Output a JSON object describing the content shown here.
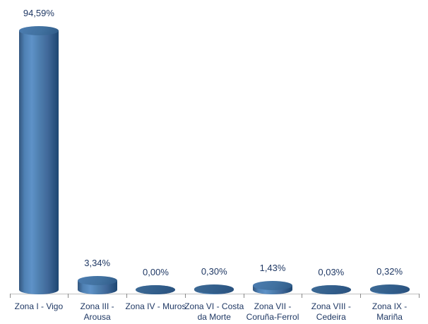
{
  "chart_data": {
    "type": "bar",
    "subtype": "3d-cylinder",
    "title": "",
    "xlabel": "",
    "ylabel": "",
    "ylim": [
      0,
      100
    ],
    "grid": false,
    "legend": false,
    "categories": [
      "Zona I - Vigo",
      "Zona III -\nArousa",
      "Zona IV - Muros",
      "Zona VI - Costa\nda Morte",
      "Zona VII -\nCoruña-Ferrol",
      "Zona VIII -\nCedeira",
      "Zona IX -\nMariña"
    ],
    "values": [
      94.59,
      3.34,
      0.0,
      0.3,
      1.43,
      0.03,
      0.32
    ],
    "data_labels": [
      "94,59%",
      "3,34%",
      "0,00%",
      "0,30%",
      "1,43%",
      "0,03%",
      "0,32%"
    ],
    "colors": {
      "label_text": "#1F3864",
      "axis_line": "#C0C0C0",
      "tick": "#898989",
      "side_gradient": "linear-gradient(to right, #33567E 0%, #4F81B4 14%, #5E92C8 32%, #4F80B0 50%, #41699A 72%, #1D4671 100%)",
      "top_gradient": "linear-gradient(125deg, #4C7DB1 0%, #41719F 55%, #2F5A87 100%)",
      "top_flat_gradient": "linear-gradient(125deg, #3E6B96 0%, #325E8B 55%, #29507D 100%)"
    }
  }
}
